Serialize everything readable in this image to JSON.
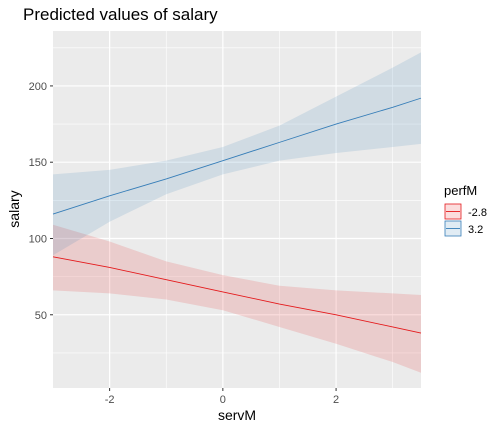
{
  "chart_data": {
    "type": "line",
    "title": "Predicted values of salary",
    "xlabel": "servM",
    "ylabel": "salary",
    "xlim": [
      -3.0,
      3.5
    ],
    "ylim": [
      2,
      236
    ],
    "x_ticks": [
      -2,
      0,
      2
    ],
    "x_tick_labels": [
      "-2",
      "0",
      "2"
    ],
    "y_ticks": [
      50,
      100,
      150,
      200
    ],
    "y_tick_labels": [
      "50",
      "100",
      "150",
      "200"
    ],
    "grid": true,
    "legend": {
      "title": "perfM",
      "position": "right"
    },
    "series": [
      {
        "name": "-2.8",
        "color": "#e41a1c",
        "x": [
          -3.0,
          -2.0,
          -1.0,
          0.0,
          1.0,
          2.0,
          3.0,
          3.5
        ],
        "y": [
          88,
          81,
          73,
          65,
          57,
          50,
          42,
          38
        ],
        "lower": [
          66,
          64,
          60,
          53,
          42,
          31,
          19,
          12
        ],
        "upper": [
          109,
          98,
          85,
          76,
          69,
          66,
          64,
          63
        ]
      },
      {
        "name": "3.2",
        "color": "#377eb8",
        "x": [
          -3.0,
          -2.0,
          -1.0,
          0.0,
          1.0,
          2.0,
          3.0,
          3.5
        ],
        "y": [
          116,
          128,
          139,
          151,
          163,
          175,
          186,
          192
        ],
        "lower": [
          89,
          111,
          129,
          142,
          151,
          156,
          160,
          162
        ],
        "upper": [
          142,
          145,
          151,
          160,
          174,
          193,
          212,
          222
        ]
      }
    ]
  }
}
